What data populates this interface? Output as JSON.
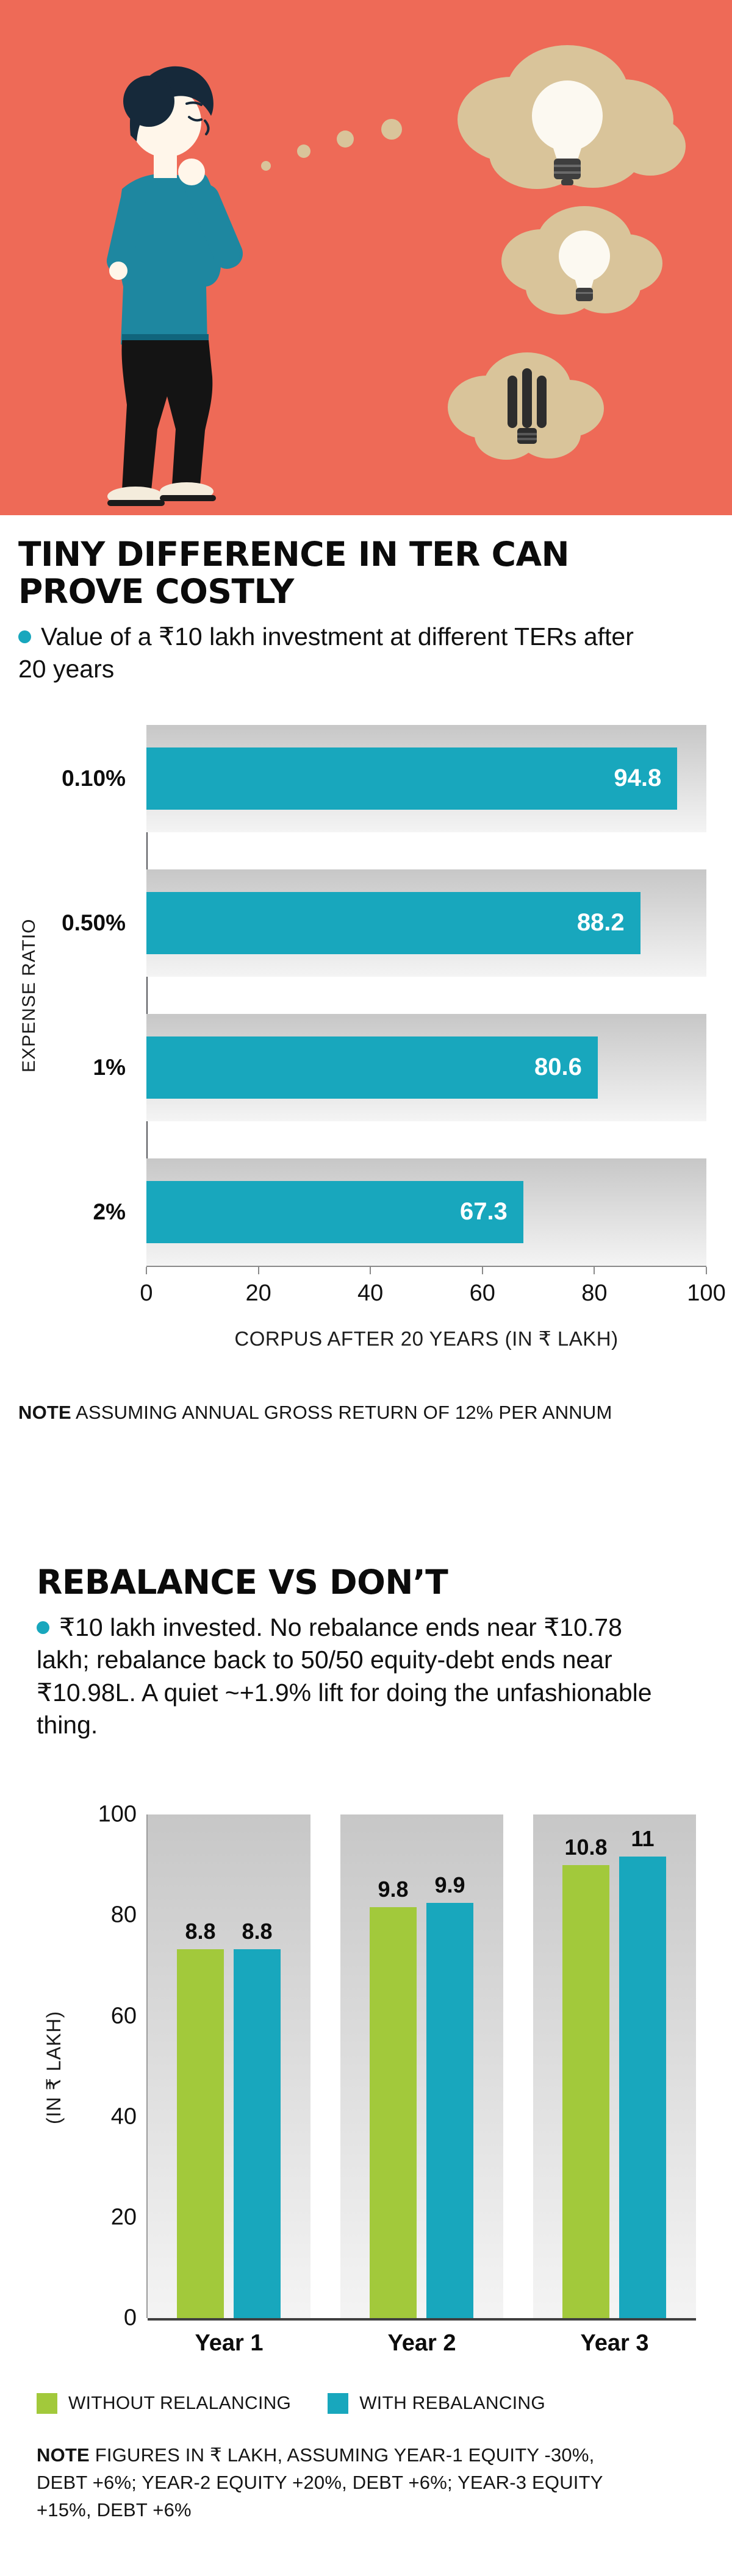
{
  "colors": {
    "teal": "#18a7bd",
    "green": "#a2c93b",
    "coral": "#ee6a57",
    "cloud": "#d9c49a",
    "shirt": "#1e87a0",
    "track_dark": "#c7c7c7",
    "track_light": "#f4f4f4"
  },
  "hero": {
    "illustration": "man-thinking-with-bulb-thought-clouds"
  },
  "sections": {
    "ter": {
      "title": "TINY DIFFERENCE IN TER CAN PROVE COSTLY",
      "subtitle": "Value of a ₹10 lakh investment at different TERs after 20 years",
      "note_label": "NOTE",
      "note_text": "ASSUMING ANNUAL GROSS RETURN OF 12% PER ANNUM"
    },
    "rebalance": {
      "title": "REBALANCE VS DON’T",
      "subtitle": "₹10 lakh invested. No rebalance ends near ₹10.78 lakh; rebalance back to 50/50 equity-debt ends near ₹10.98L. A quiet ~+1.9% lift for doing the unfashionable thing.",
      "note_label": "NOTE",
      "note_text": "FIGURES IN ₹ LAKH, ASSUMING YEAR-1 EQUITY -30%, DEBT +6%; YEAR-2 EQUITY +20%, DEBT +6%; YEAR-3 EQUITY +15%, DEBT +6%"
    }
  },
  "chart_data": [
    {
      "type": "bar",
      "orientation": "horizontal",
      "title": "TINY DIFFERENCE IN TER CAN PROVE COSTLY",
      "categories": [
        "0.10%",
        "0.50%",
        "1%",
        "2%"
      ],
      "values": [
        94.8,
        88.2,
        80.6,
        67.3
      ],
      "value_labels": [
        "94.8",
        "88.2",
        "80.6",
        "67.3"
      ],
      "xlabel": "CORPUS AFTER 20 YEARS (IN ₹ LAKH)",
      "ylabel": "EXPENSE RATIO",
      "xlim": [
        0,
        100
      ],
      "xticks": [
        0,
        20,
        40,
        60,
        80,
        100
      ],
      "bar_color": "#18a7bd",
      "track_background": true,
      "legend_position": "none"
    },
    {
      "type": "bar",
      "orientation": "vertical",
      "title": "REBALANCE VS DON’T",
      "categories": [
        "Year 1",
        "Year 2",
        "Year 3"
      ],
      "series": [
        {
          "name": "WITHOUT RELALANCING",
          "color": "#a2c93b",
          "values": [
            8.8,
            9.8,
            10.8
          ],
          "value_labels": [
            "8.8",
            "9.8",
            "10.8"
          ]
        },
        {
          "name": "WITH REBALANCING",
          "color": "#18a7bd",
          "values": [
            8.8,
            9.9,
            11
          ],
          "value_labels": [
            "8.8",
            "9.9",
            "11"
          ]
        }
      ],
      "ylabel": "(IN ₹ LAKH)",
      "yticks": [
        0,
        20,
        40,
        60,
        80,
        100
      ],
      "axis_max": 100,
      "plot_value_max": 12,
      "track_background": true,
      "legend_position": "bottom"
    }
  ]
}
